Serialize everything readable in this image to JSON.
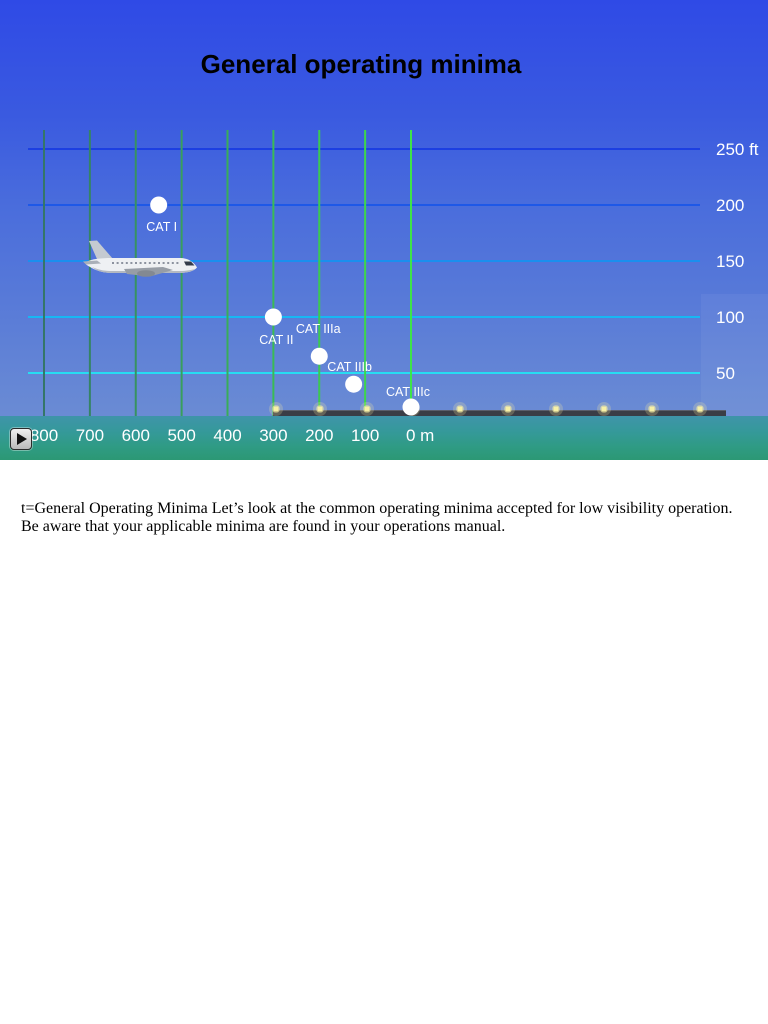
{
  "controls": {
    "play_icon": "play-icon"
  },
  "transcript": "t=General Operating Minima Let’s look at the common operating minima accepted for low visibility operation. Be aware that your applicable minima are found in your operations manual.",
  "chart_data": {
    "type": "scatter",
    "title": "General operating minima",
    "xlim": [
      800,
      0
    ],
    "x_reversed": true,
    "ylim": [
      0,
      250
    ],
    "x_ticks": [
      800,
      700,
      600,
      500,
      400,
      300,
      200,
      100,
      0
    ],
    "x_tick_labels": [
      "800",
      "700",
      "600",
      "500",
      "400",
      "300",
      "200",
      "100",
      "0 m"
    ],
    "y_ticks": [
      50,
      100,
      150,
      200,
      250
    ],
    "y_tick_labels": [
      "50",
      "100",
      "150",
      "200",
      "250 ft"
    ],
    "grid": true,
    "point_color": "#ffffff",
    "points": [
      {
        "label": "CAT I",
        "x": 550,
        "y": 200
      },
      {
        "label": "CAT II",
        "x": 300,
        "y": 100
      },
      {
        "label": "CAT IIIa",
        "x": 200,
        "y": 65
      },
      {
        "label": "CAT IIIb",
        "x": 125,
        "y": 40
      },
      {
        "label": "CAT IIIc",
        "x": 0,
        "y": 0
      }
    ]
  }
}
